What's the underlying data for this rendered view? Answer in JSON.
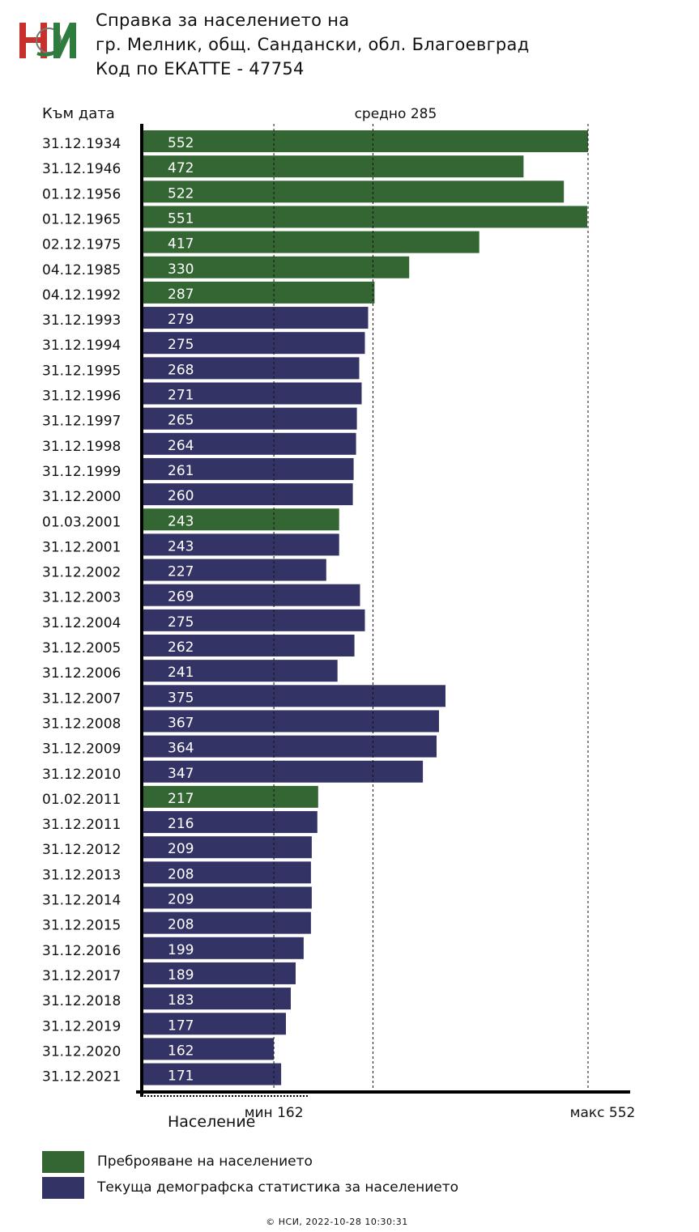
{
  "header": {
    "line1": "Справка за населението на",
    "line2": "гр. Мелник, общ. Сандански, обл. Благоевград",
    "line3": "Код по ЕКАТТЕ - 47754"
  },
  "colors": {
    "census": "#336633",
    "current": "#333366",
    "logo_red": "#c8302c",
    "logo_green": "#2e7d3e"
  },
  "legend": {
    "census_label": "Преброяване на населението",
    "current_label": "Текуща демографска статистика за населението"
  },
  "footer": {
    "text": "© НСИ, 2022-10-28 10:30:31"
  },
  "chart_data": {
    "type": "bar",
    "orientation": "horizontal",
    "y_header": "Към дата",
    "xlabel": "Население",
    "grid": false,
    "reference_lines": [
      {
        "label": "мин 162",
        "value": 162
      },
      {
        "label": "средно 285",
        "value": 285
      },
      {
        "label": "макс 552",
        "value": 552
      }
    ],
    "categories": [
      "31.12.1934",
      "31.12.1946",
      "01.12.1956",
      "01.12.1965",
      "02.12.1975",
      "04.12.1985",
      "04.12.1992",
      "31.12.1993",
      "31.12.1994",
      "31.12.1995",
      "31.12.1996",
      "31.12.1997",
      "31.12.1998",
      "31.12.1999",
      "31.12.2000",
      "01.03.2001",
      "31.12.2001",
      "31.12.2002",
      "31.12.2003",
      "31.12.2004",
      "31.12.2005",
      "31.12.2006",
      "31.12.2007",
      "31.12.2008",
      "31.12.2009",
      "31.12.2010",
      "01.02.2011",
      "31.12.2011",
      "31.12.2012",
      "31.12.2013",
      "31.12.2014",
      "31.12.2015",
      "31.12.2016",
      "31.12.2017",
      "31.12.2018",
      "31.12.2019",
      "31.12.2020",
      "31.12.2021"
    ],
    "values": [
      552,
      472,
      522,
      551,
      417,
      330,
      287,
      279,
      275,
      268,
      271,
      265,
      264,
      261,
      260,
      243,
      243,
      227,
      269,
      275,
      262,
      241,
      375,
      367,
      364,
      347,
      217,
      216,
      209,
      208,
      209,
      208,
      199,
      189,
      183,
      177,
      162,
      171
    ],
    "kinds": [
      "census",
      "census",
      "census",
      "census",
      "census",
      "census",
      "census",
      "current",
      "current",
      "current",
      "current",
      "current",
      "current",
      "current",
      "current",
      "census",
      "current",
      "current",
      "current",
      "current",
      "current",
      "current",
      "current",
      "current",
      "current",
      "current",
      "census",
      "current",
      "current",
      "current",
      "current",
      "current",
      "current",
      "current",
      "current",
      "current",
      "current",
      "current"
    ]
  }
}
